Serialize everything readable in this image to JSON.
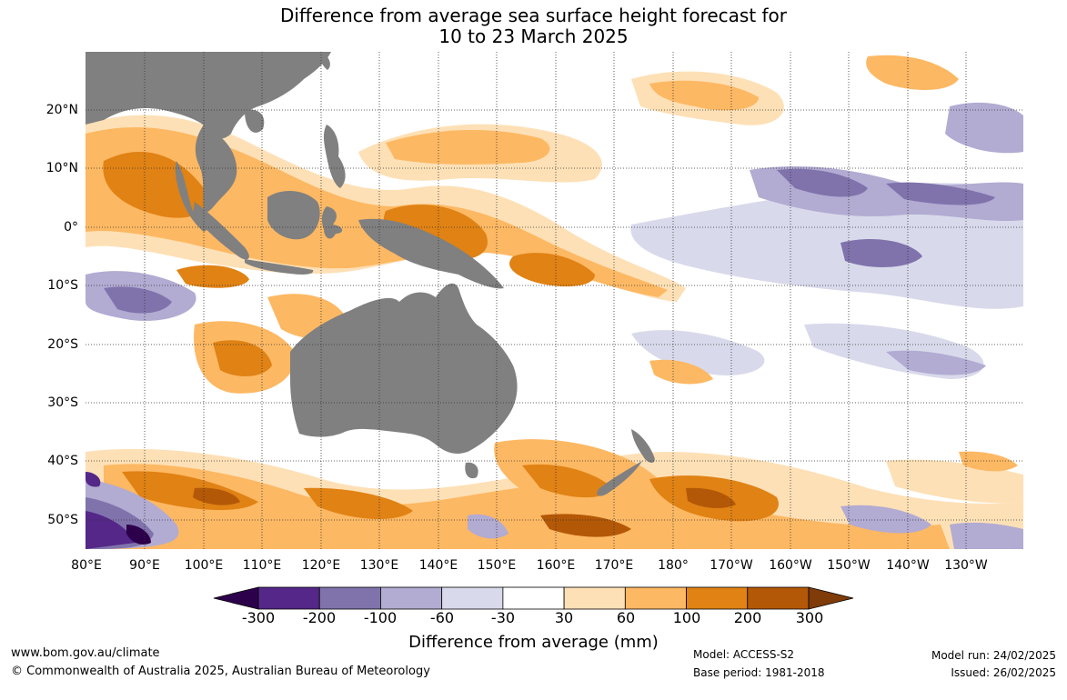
{
  "title": {
    "line1": "Difference from average sea surface height forecast for",
    "line2": "10 to 23 March 2025"
  },
  "map": {
    "lat_labels": [
      "20°N",
      "10°N",
      "0°",
      "10°S",
      "20°S",
      "30°S",
      "40°S",
      "50°S"
    ],
    "lon_labels": [
      "80°E",
      "90°E",
      "100°E",
      "110°E",
      "120°E",
      "130°E",
      "140°E",
      "150°E",
      "160°E",
      "170°E",
      "180°",
      "170°W",
      "160°W",
      "150°W",
      "140°W",
      "130°W"
    ],
    "land_color": "#808080",
    "grid_style": "dotted",
    "extent": {
      "lon": [
        "80°E",
        "120°W"
      ],
      "lat": [
        "55°S",
        "30°N"
      ]
    }
  },
  "colorbar": {
    "title": "Difference from average (mm)",
    "ticks": [
      "-300",
      "-200",
      "-100",
      "-60",
      "-30",
      "30",
      "60",
      "100",
      "200",
      "300"
    ],
    "colors": [
      "#2d004b",
      "#542788",
      "#8073ac",
      "#b2abd2",
      "#d8daeb",
      "#ffffff",
      "#fee0b6",
      "#fdb863",
      "#e08214",
      "#b35806",
      "#7f3b08"
    ]
  },
  "footer": {
    "website": "www.bom.gov.au/climate",
    "copyright": "© Commonwealth of Australia 2025, Australian Bureau of Meteorology",
    "model": "Model: ACCESS-S2",
    "base_period": "Base period: 1981-2018",
    "model_run": "Model run: 24/02/2025",
    "issued": "Issued: 26/02/2025"
  }
}
